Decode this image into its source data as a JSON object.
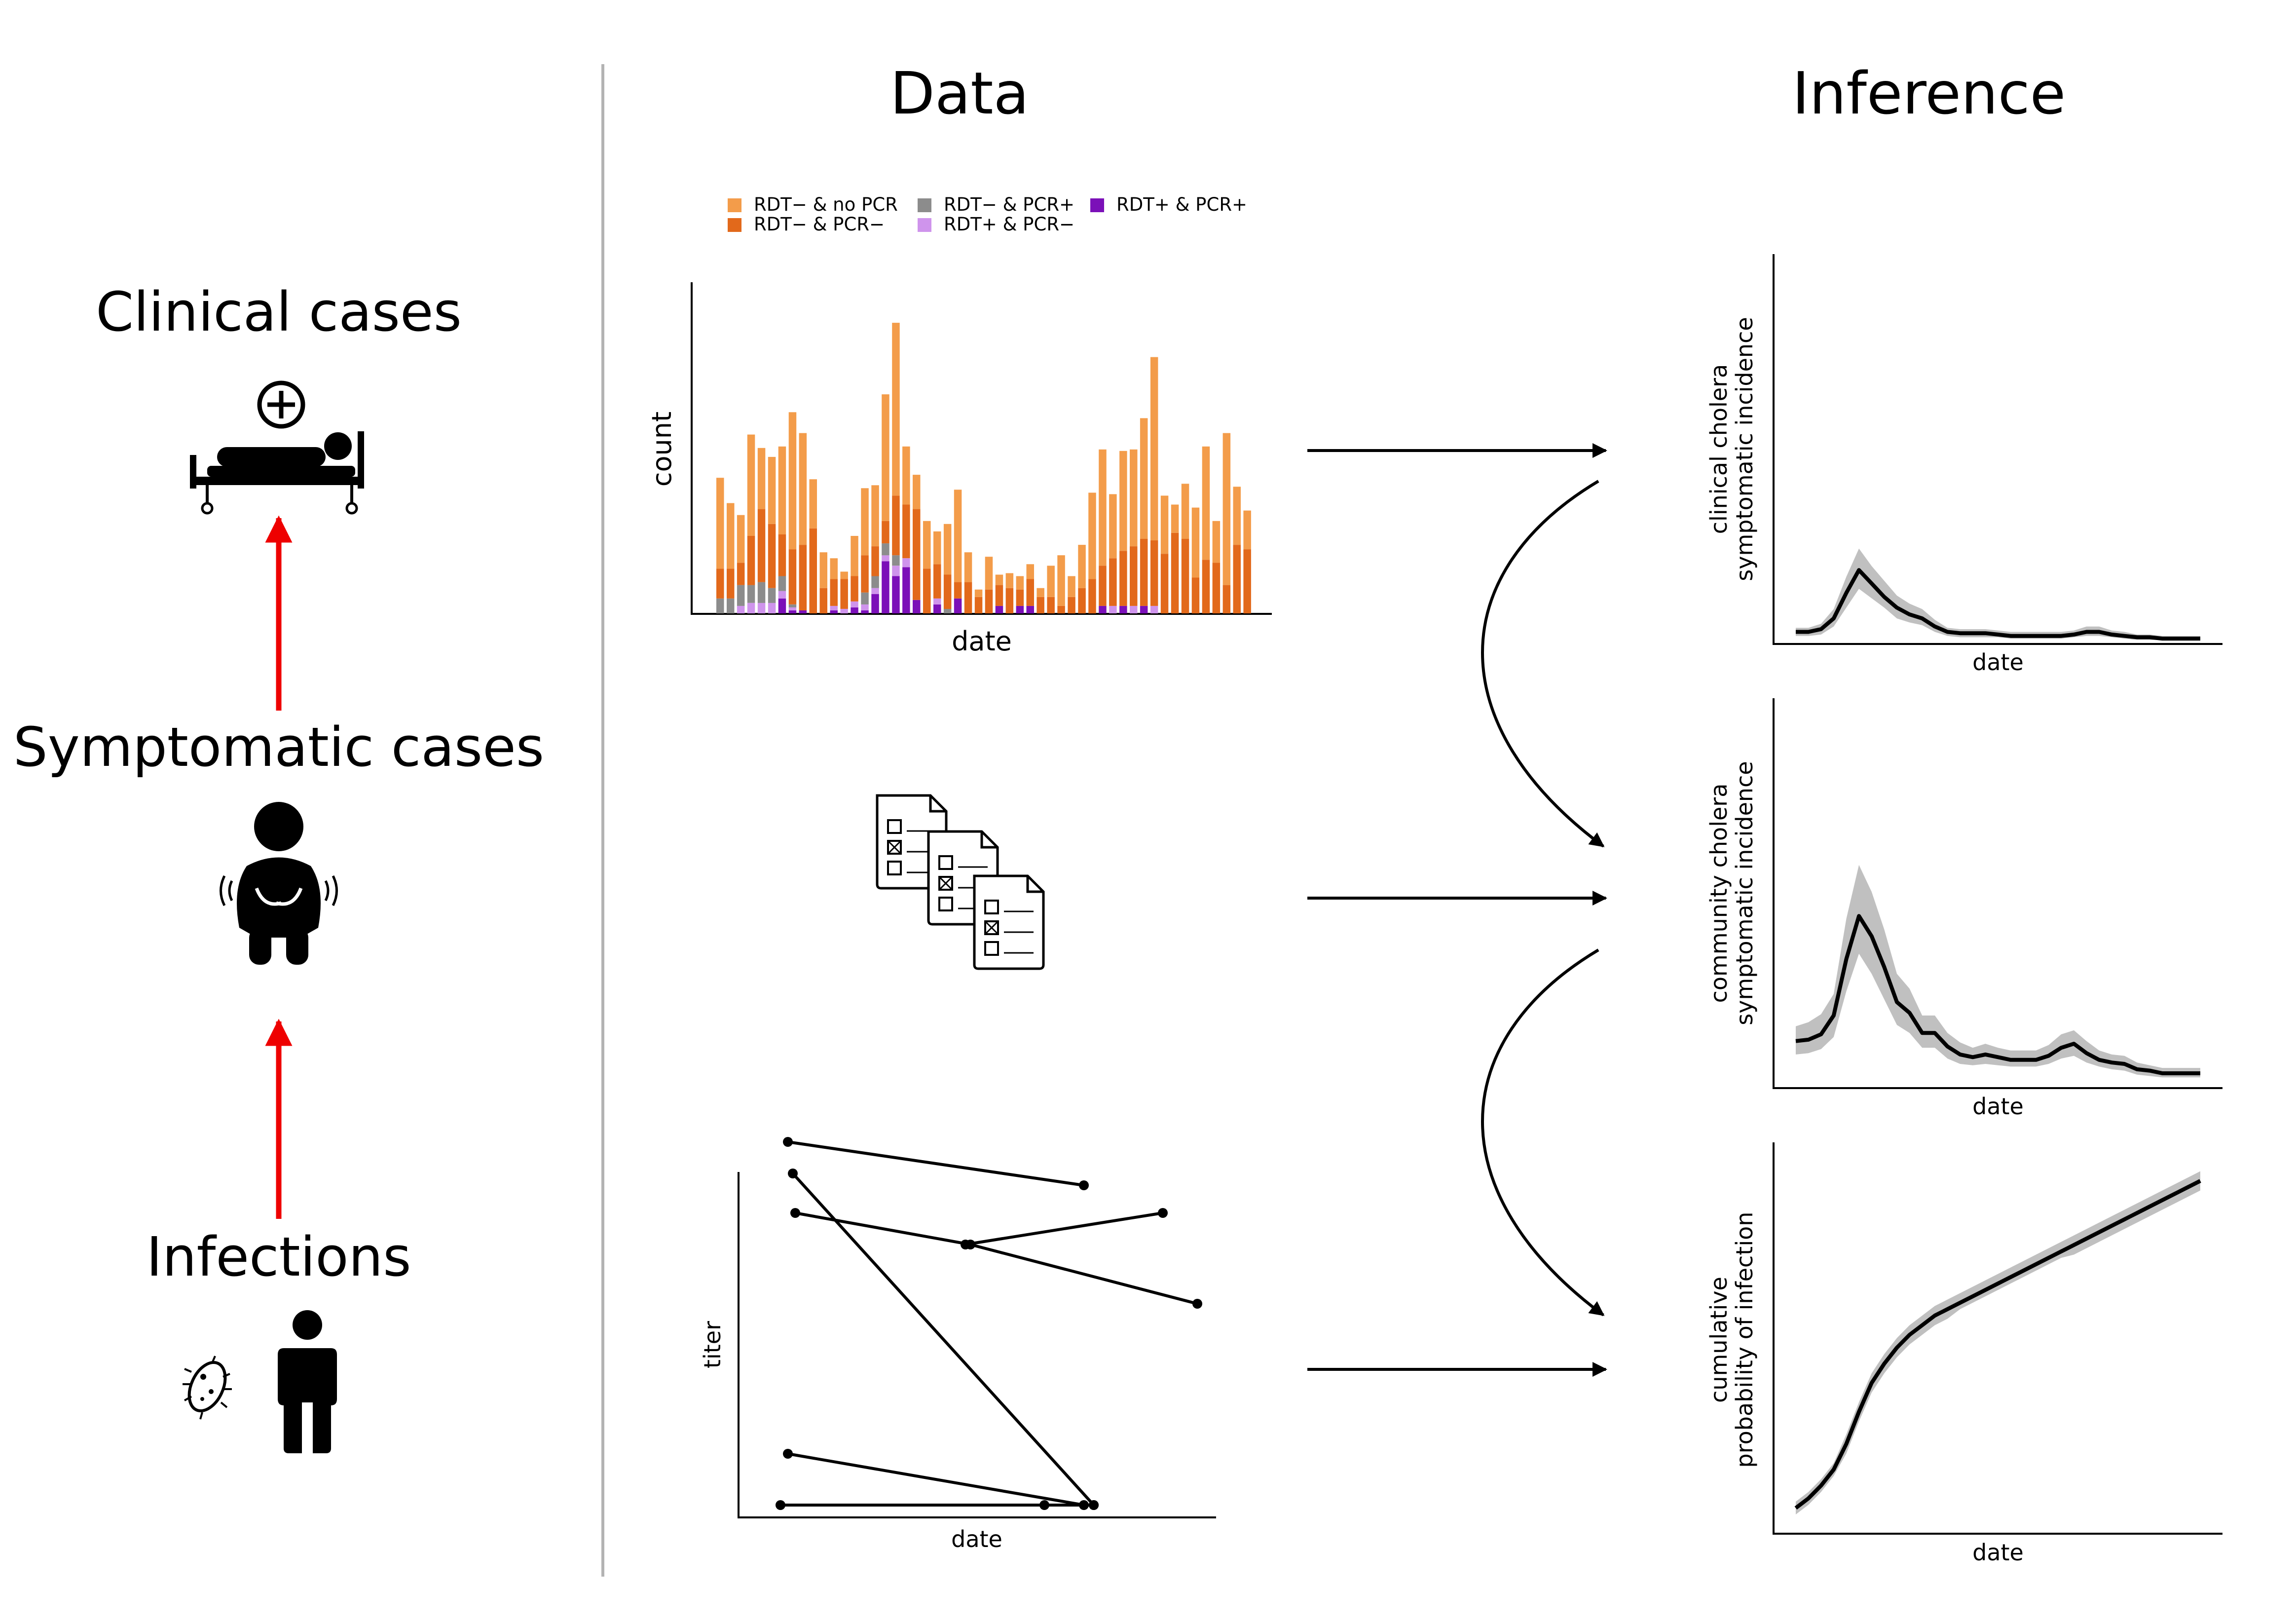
{
  "left_panel": {
    "clinical_cases": "Clinical cases",
    "symptomatic_cases": "Symptomatic cases",
    "infections": "Infections"
  },
  "sections": {
    "data": "Data",
    "inference": "Inference"
  },
  "colors": {
    "rdt_neg_no_pcr": "#f39c4a",
    "rdt_neg_pcr_neg": "#e2691b",
    "rdt_neg_pcr_pos": "#8c8c8c",
    "rdt_pos_pcr_neg": "#cf94ec",
    "rdt_pos_pcr_pos": "#7b10b8",
    "arrow_red": "#ee0000",
    "band_gray": "#c0c0c0",
    "divider": "#b3b3b3"
  },
  "icons": [
    "hospital-bed-icon",
    "sick-person-icon",
    "bacterium-icon",
    "person-icon",
    "survey-forms-icon"
  ],
  "chart_data": [
    {
      "type": "bar",
      "stacked": true,
      "xlabel": "date",
      "ylabel": "count",
      "legend_position": "top",
      "series_order": [
        "RDT+ & PCR+",
        "RDT+ & PCR−",
        "RDT− & PCR+",
        "RDT− & PCR−",
        "RDT− & no PCR"
      ],
      "legend": [
        "RDT− & no PCR",
        "RDT− & PCR−",
        "RDT− & PCR+",
        "RDT+ & PCR−",
        "RDT+ & PCR+"
      ],
      "bars": [
        [
          0,
          0,
          10,
          20,
          61
        ],
        [
          0,
          0,
          10,
          20,
          44
        ],
        [
          0,
          5,
          14,
          15,
          32
        ],
        [
          0,
          7,
          12,
          33,
          68
        ],
        [
          0,
          7,
          14,
          49,
          41
        ],
        [
          0,
          7,
          10,
          43,
          45
        ],
        [
          10,
          5,
          10,
          28,
          59
        ],
        [
          2,
          2,
          2,
          37,
          92
        ],
        [
          2,
          0,
          0,
          44,
          75
        ],
        [
          0,
          0,
          0,
          57,
          33
        ],
        [
          0,
          0,
          0,
          17,
          24
        ],
        [
          2,
          3,
          0,
          18,
          14
        ],
        [
          0,
          3,
          0,
          20,
          5
        ],
        [
          4,
          4,
          0,
          17,
          27
        ],
        [
          2,
          4,
          8,
          25,
          45
        ],
        [
          13,
          4,
          8,
          20,
          41
        ],
        [
          35,
          4,
          8,
          15,
          85
        ],
        [
          25,
          7,
          7,
          40,
          116
        ],
        [
          31,
          6,
          0,
          36,
          39
        ],
        [
          9,
          0,
          0,
          61,
          23
        ],
        [
          0,
          0,
          0,
          30,
          32
        ],
        [
          6,
          4,
          0,
          23,
          22
        ],
        [
          0,
          0,
          3,
          23,
          34
        ],
        [
          10,
          0,
          0,
          11,
          62
        ],
        [
          0,
          0,
          0,
          21,
          20
        ],
        [
          0,
          0,
          0,
          11,
          5
        ],
        [
          0,
          0,
          0,
          16,
          22
        ],
        [
          5,
          0,
          0,
          14,
          7
        ],
        [
          0,
          0,
          0,
          17,
          10
        ],
        [
          5,
          0,
          0,
          11,
          9
        ],
        [
          5,
          0,
          0,
          18,
          10
        ],
        [
          0,
          0,
          0,
          11,
          6
        ],
        [
          0,
          0,
          0,
          11,
          21
        ],
        [
          0,
          0,
          0,
          5,
          34
        ],
        [
          0,
          0,
          0,
          11,
          14
        ],
        [
          0,
          0,
          0,
          17,
          29
        ],
        [
          0,
          0,
          0,
          23,
          58
        ],
        [
          5,
          0,
          0,
          27,
          78
        ],
        [
          0,
          5,
          0,
          32,
          43
        ],
        [
          5,
          0,
          0,
          37,
          67
        ],
        [
          0,
          5,
          0,
          40,
          65
        ],
        [
          5,
          0,
          0,
          45,
          81
        ],
        [
          0,
          5,
          0,
          44,
          123
        ],
        [
          0,
          0,
          0,
          40,
          39
        ],
        [
          0,
          0,
          0,
          54,
          19
        ],
        [
          0,
          0,
          0,
          50,
          37
        ],
        [
          0,
          0,
          0,
          24,
          47
        ],
        [
          0,
          0,
          0,
          36,
          76
        ],
        [
          0,
          0,
          0,
          34,
          28
        ],
        [
          0,
          0,
          0,
          19,
          102
        ],
        [
          0,
          0,
          0,
          46,
          39
        ],
        [
          0,
          0,
          0,
          43,
          26
        ]
      ]
    },
    {
      "type": "line",
      "xlabel": "date",
      "ylabel": "titer",
      "series": [
        {
          "x": [
            1,
            7
          ],
          "y": [
            9.2,
            8.1
          ]
        },
        {
          "x": [
            1.1,
            7.2
          ],
          "y": [
            8.4,
            0
          ]
        },
        {
          "x": [
            1,
            7
          ],
          "y": [
            1.3,
            0
          ]
        },
        {
          "x": [
            0.85,
            6.2,
            7.2
          ],
          "y": [
            0,
            0,
            0
          ]
        },
        {
          "x": [
            1.15,
            4.7,
            9.3
          ],
          "y": [
            7.4,
            6.6,
            5.1
          ]
        },
        {
          "x": [
            4.6,
            8.6
          ],
          "y": [
            6.6,
            7.4
          ]
        }
      ]
    },
    {
      "type": "area",
      "xlabel": "date",
      "ylabel": "clinical cholera\nsymptomatic incidence",
      "x": [
        0,
        1,
        2,
        3,
        4,
        5,
        6,
        7,
        8,
        9,
        10,
        11,
        12,
        13,
        14,
        15,
        16,
        17,
        18,
        19,
        20,
        21,
        22,
        23,
        24,
        25,
        26,
        27,
        28,
        29,
        30,
        31,
        32
      ],
      "y": [
        0.09,
        0.09,
        0.11,
        0.19,
        0.38,
        0.55,
        0.45,
        0.35,
        0.27,
        0.22,
        0.19,
        0.13,
        0.09,
        0.08,
        0.08,
        0.08,
        0.07,
        0.06,
        0.06,
        0.06,
        0.06,
        0.06,
        0.07,
        0.09,
        0.09,
        0.07,
        0.06,
        0.05,
        0.05,
        0.04,
        0.04,
        0.04,
        0.04
      ],
      "lower": [
        0.06,
        0.06,
        0.07,
        0.13,
        0.27,
        0.41,
        0.34,
        0.27,
        0.19,
        0.16,
        0.14,
        0.09,
        0.06,
        0.05,
        0.05,
        0.05,
        0.05,
        0.04,
        0.04,
        0.04,
        0.04,
        0.04,
        0.05,
        0.06,
        0.06,
        0.05,
        0.04,
        0.03,
        0.03,
        0.03,
        0.03,
        0.03,
        0.03
      ],
      "upper": [
        0.12,
        0.12,
        0.15,
        0.26,
        0.5,
        0.71,
        0.58,
        0.47,
        0.36,
        0.3,
        0.26,
        0.18,
        0.12,
        0.11,
        0.11,
        0.11,
        0.1,
        0.09,
        0.09,
        0.09,
        0.09,
        0.09,
        0.1,
        0.13,
        0.13,
        0.1,
        0.09,
        0.07,
        0.07,
        0.06,
        0.06,
        0.06,
        0.06
      ],
      "ylim": [
        0,
        2.9
      ]
    },
    {
      "type": "area",
      "xlabel": "date",
      "ylabel": "community cholera\nsymptomatic incidence",
      "x": [
        0,
        1,
        2,
        3,
        4,
        5,
        6,
        7,
        8,
        9,
        10,
        11,
        12,
        13,
        14,
        15,
        16,
        17,
        18,
        19,
        20,
        21,
        22,
        23,
        24,
        25,
        26,
        27,
        28,
        29,
        30,
        31,
        32
      ],
      "y": [
        0.35,
        0.36,
        0.4,
        0.54,
        0.96,
        1.28,
        1.13,
        0.9,
        0.64,
        0.56,
        0.41,
        0.41,
        0.31,
        0.25,
        0.23,
        0.25,
        0.23,
        0.21,
        0.21,
        0.21,
        0.24,
        0.3,
        0.33,
        0.26,
        0.21,
        0.19,
        0.18,
        0.14,
        0.13,
        0.11,
        0.11,
        0.11,
        0.11
      ],
      "lower": [
        0.25,
        0.26,
        0.29,
        0.38,
        0.72,
        1.0,
        0.85,
        0.66,
        0.47,
        0.41,
        0.3,
        0.3,
        0.22,
        0.18,
        0.17,
        0.18,
        0.17,
        0.16,
        0.16,
        0.16,
        0.18,
        0.22,
        0.24,
        0.19,
        0.16,
        0.14,
        0.13,
        0.1,
        0.09,
        0.08,
        0.08,
        0.08,
        0.08
      ],
      "upper": [
        0.46,
        0.49,
        0.55,
        0.7,
        1.26,
        1.66,
        1.46,
        1.18,
        0.85,
        0.74,
        0.54,
        0.54,
        0.41,
        0.34,
        0.3,
        0.33,
        0.3,
        0.28,
        0.28,
        0.28,
        0.32,
        0.4,
        0.43,
        0.35,
        0.28,
        0.25,
        0.24,
        0.19,
        0.17,
        0.15,
        0.15,
        0.15,
        0.15
      ],
      "ylim": [
        0,
        2.9
      ]
    },
    {
      "type": "area",
      "xlabel": "date",
      "ylabel": "cumulative\nprobability of infection",
      "x": [
        0,
        1,
        2,
        3,
        4,
        5,
        6,
        7,
        8,
        9,
        10,
        11,
        12,
        13,
        14,
        15,
        16,
        17,
        18,
        19,
        20,
        21,
        22,
        23,
        24,
        25,
        26,
        27,
        28,
        29,
        30,
        31,
        32
      ],
      "y": [
        0.08,
        0.11,
        0.15,
        0.2,
        0.28,
        0.38,
        0.47,
        0.53,
        0.58,
        0.62,
        0.65,
        0.68,
        0.7,
        0.72,
        0.74,
        0.76,
        0.78,
        0.8,
        0.82,
        0.84,
        0.86,
        0.88,
        0.9,
        0.92,
        0.94,
        0.96,
        0.98,
        1.0,
        1.02,
        1.04,
        1.06,
        1.08,
        1.1
      ],
      "lower": [
        0.06,
        0.09,
        0.13,
        0.18,
        0.25,
        0.35,
        0.44,
        0.5,
        0.55,
        0.59,
        0.62,
        0.65,
        0.67,
        0.7,
        0.72,
        0.74,
        0.76,
        0.78,
        0.8,
        0.82,
        0.84,
        0.86,
        0.87,
        0.89,
        0.91,
        0.93,
        0.95,
        0.97,
        0.99,
        1.01,
        1.03,
        1.05,
        1.07
      ],
      "upper": [
        0.1,
        0.13,
        0.17,
        0.22,
        0.31,
        0.41,
        0.5,
        0.56,
        0.61,
        0.65,
        0.68,
        0.71,
        0.73,
        0.75,
        0.77,
        0.79,
        0.81,
        0.83,
        0.85,
        0.87,
        0.89,
        0.91,
        0.93,
        0.95,
        0.97,
        0.99,
        1.01,
        1.03,
        1.05,
        1.07,
        1.09,
        1.11,
        1.13
      ],
      "ylim": [
        0,
        1.22
      ]
    }
  ]
}
